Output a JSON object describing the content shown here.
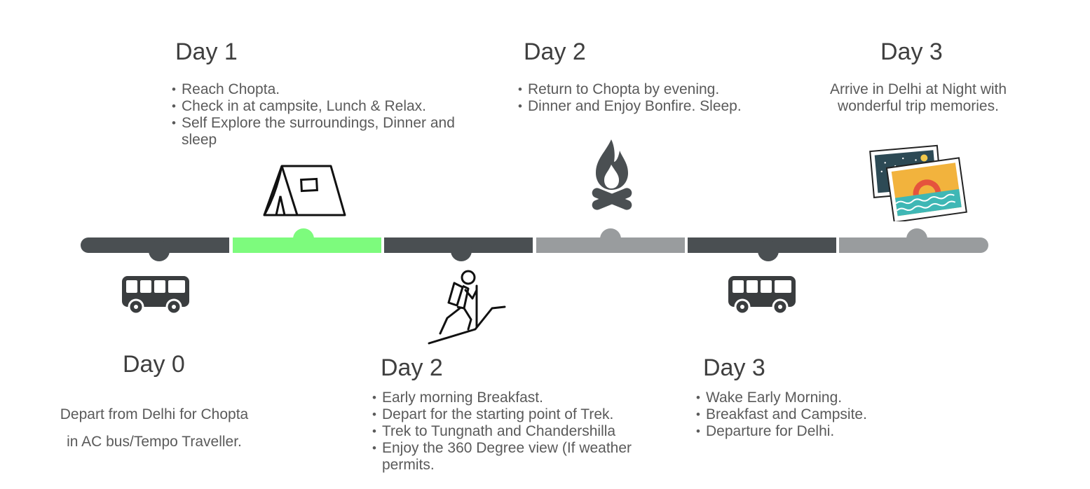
{
  "colors": {
    "dark": "#4a4f52",
    "gray": "#999c9e",
    "green": "#7dfb7d",
    "text": "#5a5a5a"
  },
  "top_events": [
    {
      "title": "Day 1",
      "icon": "tent-icon",
      "bullets": [
        "Reach Chopta.",
        "Check in at campsite, Lunch & Relax.",
        "Self Explore the surroundings, Dinner and sleep"
      ]
    },
    {
      "title": "Day 2",
      "icon": "campfire-icon",
      "bullets": [
        "Return to Chopta by evening.",
        "Dinner and Enjoy Bonfire. Sleep."
      ]
    },
    {
      "title": "Day 3",
      "icon": "photos-icon",
      "text": "Arrive in Delhi at Night with wonderful trip memories."
    }
  ],
  "bottom_events": [
    {
      "title": "Day 0",
      "icon": "bus-icon",
      "lines": [
        "Depart from Delhi for Chopta",
        "in AC bus/Tempo Traveller."
      ]
    },
    {
      "title": "Day 2",
      "icon": "hiker-icon",
      "bullets": [
        "Early morning Breakfast.",
        "Depart for the starting point of Trek.",
        "Trek to Tungnath and Chandershilla",
        "Enjoy the 360 Degree view (If weather permits."
      ]
    },
    {
      "title": "Day 3",
      "icon": "bus-icon",
      "bullets": [
        "Wake Early Morning.",
        "Breakfast and Campsite.",
        "Departure for Delhi."
      ]
    }
  ]
}
